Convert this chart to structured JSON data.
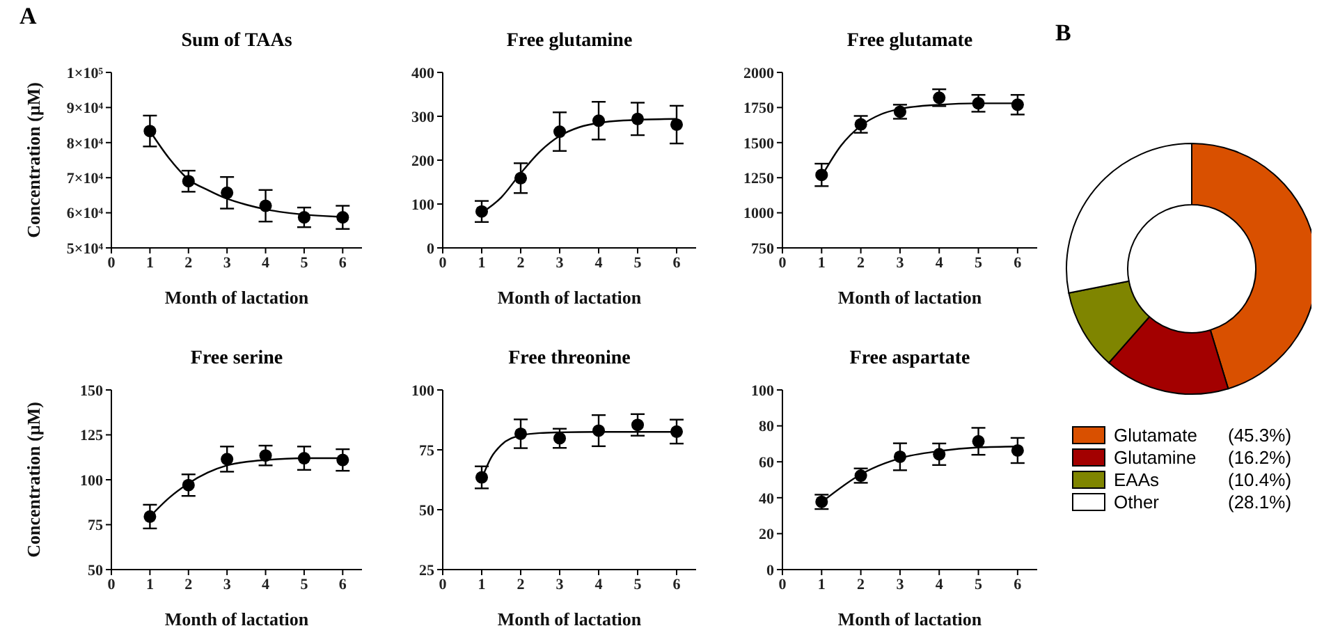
{
  "chart_data": [
    {
      "type": "line",
      "title": "Sum of TAAs",
      "xlabel": "Month of lactation",
      "ylabel": "Concentration (µM)",
      "annotations": [
        "A"
      ],
      "x": [
        1,
        2,
        3,
        4,
        5,
        6
      ],
      "xlim": [
        0,
        6.5
      ],
      "xticks": [
        0,
        1,
        2,
        3,
        4,
        5,
        6
      ],
      "ylim": [
        50000,
        100000
      ],
      "yticks": [
        {
          "value": 50000,
          "label": "5×10⁴"
        },
        {
          "value": 60000,
          "label": "6×10⁴"
        },
        {
          "value": 70000,
          "label": "7×10⁴"
        },
        {
          "value": 80000,
          "label": "8×10⁴"
        },
        {
          "value": 90000,
          "label": "9×10⁴"
        },
        {
          "value": 100000,
          "label": "1×10⁵"
        }
      ],
      "grid": false,
      "legend": false,
      "series": [
        {
          "type": "scatter",
          "marker": "circle",
          "color": "#000000",
          "values": [
            83300,
            69000,
            65700,
            62000,
            58700,
            58700
          ],
          "errors": [
            4400,
            3000,
            4500,
            4500,
            2800,
            3300
          ]
        },
        {
          "type": "line",
          "marker": "none",
          "color": "#000000",
          "x": [
            1,
            1.5,
            2,
            2.5,
            3,
            3.5,
            4,
            4.5,
            5,
            5.5,
            6
          ],
          "values": [
            83300,
            75500,
            69500,
            66500,
            64000,
            62300,
            61000,
            60100,
            59500,
            59100,
            58800
          ]
        }
      ]
    },
    {
      "type": "line",
      "title": "Free glutamine",
      "xlabel": "Month of lactation",
      "x": [
        1,
        2,
        3,
        4,
        5,
        6
      ],
      "xlim": [
        0,
        6.5
      ],
      "xticks": [
        0,
        1,
        2,
        3,
        4,
        5,
        6
      ],
      "ylim": [
        0,
        400
      ],
      "yticks": [
        0,
        100,
        200,
        300,
        400
      ],
      "grid": false,
      "legend": false,
      "series": [
        {
          "type": "scatter",
          "marker": "circle",
          "color": "#000000",
          "values": [
            83,
            159,
            265,
            290,
            294,
            281
          ],
          "errors": [
            24,
            34,
            44,
            43,
            37,
            43
          ]
        },
        {
          "type": "line",
          "marker": "none",
          "color": "#000000",
          "x": [
            1,
            1.5,
            2,
            2.5,
            3,
            3.5,
            4,
            5,
            6
          ],
          "values": [
            80,
            115,
            170,
            220,
            255,
            275,
            285,
            292,
            294
          ]
        }
      ]
    },
    {
      "type": "line",
      "title": "Free glutamate",
      "xlabel": "Month of lactation",
      "x": [
        1,
        2,
        3,
        4,
        5,
        6
      ],
      "xlim": [
        0,
        6.5
      ],
      "xticks": [
        0,
        1,
        2,
        3,
        4,
        5,
        6
      ],
      "ylim": [
        750,
        2000
      ],
      "yticks": [
        750,
        1000,
        1250,
        1500,
        1750,
        2000
      ],
      "grid": false,
      "legend": false,
      "series": [
        {
          "type": "scatter",
          "marker": "circle",
          "color": "#000000",
          "values": [
            1270,
            1630,
            1720,
            1820,
            1780,
            1770
          ],
          "errors": [
            80,
            60,
            50,
            60,
            60,
            70
          ]
        },
        {
          "type": "line",
          "marker": "none",
          "color": "#000000",
          "x": [
            1,
            1.5,
            2,
            2.5,
            3,
            4,
            5,
            6
          ],
          "values": [
            1260,
            1480,
            1620,
            1700,
            1740,
            1770,
            1780,
            1780
          ]
        }
      ]
    },
    {
      "type": "line",
      "title": "Free serine",
      "xlabel": "Month of lactation",
      "ylabel": "Concentration (µM)",
      "x": [
        1,
        2,
        3,
        4,
        5,
        6
      ],
      "xlim": [
        0,
        6.5
      ],
      "xticks": [
        0,
        1,
        2,
        3,
        4,
        5,
        6
      ],
      "ylim": [
        50,
        150
      ],
      "yticks": [
        50,
        75,
        100,
        125,
        150
      ],
      "grid": false,
      "legend": false,
      "series": [
        {
          "type": "scatter",
          "marker": "circle",
          "color": "#000000",
          "values": [
            79.5,
            97,
            111.5,
            113.5,
            112,
            111
          ],
          "errors": [
            6.6,
            6,
            7,
            5.5,
            6.5,
            6
          ]
        },
        {
          "type": "line",
          "marker": "none",
          "color": "#000000",
          "x": [
            1,
            1.5,
            2,
            2.5,
            3,
            3.5,
            4,
            5,
            6
          ],
          "values": [
            79.5,
            90,
            98,
            104,
            108,
            110,
            111,
            112,
            112
          ]
        }
      ]
    },
    {
      "type": "line",
      "title": "Free threonine",
      "xlabel": "Month of lactation",
      "x": [
        1,
        2,
        3,
        4,
        5,
        6
      ],
      "xlim": [
        0,
        6.5
      ],
      "xticks": [
        0,
        1,
        2,
        3,
        4,
        5,
        6
      ],
      "ylim": [
        25,
        100
      ],
      "yticks": [
        25,
        50,
        75,
        100
      ],
      "grid": false,
      "legend": false,
      "series": [
        {
          "type": "scatter",
          "marker": "circle",
          "color": "#000000",
          "values": [
            63.5,
            81.7,
            79.8,
            83,
            85.4,
            82.6
          ],
          "errors": [
            4.6,
            6,
            4,
            6.5,
            4.5,
            5
          ]
        },
        {
          "type": "line",
          "marker": "none",
          "color": "#000000",
          "x": [
            1,
            1.25,
            1.5,
            2,
            2.5,
            3,
            4,
            5,
            6
          ],
          "values": [
            63,
            72,
            77,
            81,
            82,
            82.3,
            82.5,
            82.5,
            82.5
          ]
        }
      ]
    },
    {
      "type": "line",
      "title": "Free aspartate",
      "xlabel": "Month of lactation",
      "x": [
        1,
        2,
        3,
        4,
        5,
        6
      ],
      "xlim": [
        0,
        6.5
      ],
      "xticks": [
        0,
        1,
        2,
        3,
        4,
        5,
        6
      ],
      "ylim": [
        0,
        100
      ],
      "yticks": [
        0,
        20,
        40,
        60,
        80,
        100
      ],
      "grid": false,
      "legend": false,
      "series": [
        {
          "type": "scatter",
          "marker": "circle",
          "color": "#000000",
          "values": [
            37.7,
            52.3,
            62.8,
            64.2,
            71.4,
            66.3
          ],
          "errors": [
            4,
            4,
            7.5,
            6,
            7.5,
            7
          ]
        },
        {
          "type": "line",
          "marker": "none",
          "color": "#000000",
          "x": [
            1,
            2,
            3,
            4,
            5,
            6
          ],
          "values": [
            37.5,
            53,
            62,
            66,
            68,
            68.5
          ]
        }
      ]
    },
    {
      "type": "donut",
      "annotations": [
        "B"
      ],
      "legend": "bottom",
      "categories": [
        "Glutamate",
        "Glutamine",
        "EAAs",
        "Other"
      ],
      "values": [
        45.3,
        16.2,
        10.4,
        28.1
      ],
      "colors": [
        "#d95000",
        "#a30000",
        "#7f8500",
        "#ffffff"
      ],
      "value_labels": [
        "(45.3%)",
        "(16.2%)",
        "(10.4%)",
        "(28.1%)"
      ]
    }
  ]
}
